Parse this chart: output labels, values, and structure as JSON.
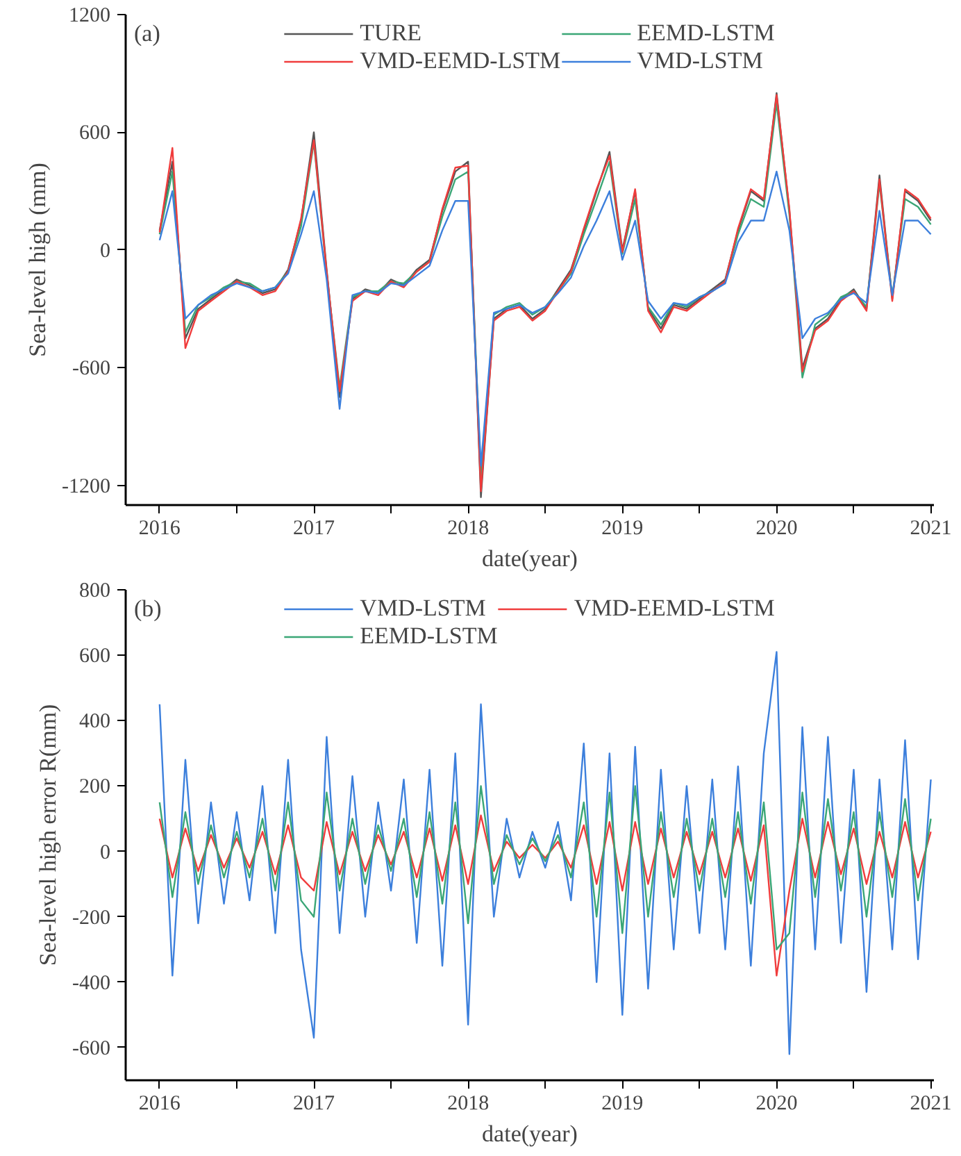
{
  "chart_data": [
    {
      "type": "line",
      "title": "(a)",
      "xlabel": "date(year)",
      "ylabel": "Sea-level high (mm)",
      "legend": "top",
      "grid": false,
      "x": [
        2016.0,
        2016.083,
        2016.167,
        2016.25,
        2016.333,
        2016.417,
        2016.5,
        2016.583,
        2016.667,
        2016.75,
        2016.833,
        2016.917,
        2017.0,
        2017.083,
        2017.167,
        2017.25,
        2017.333,
        2017.417,
        2017.5,
        2017.583,
        2017.667,
        2017.75,
        2017.833,
        2017.917,
        2018.0,
        2018.083,
        2018.167,
        2018.25,
        2018.333,
        2018.417,
        2018.5,
        2018.583,
        2018.667,
        2018.75,
        2018.833,
        2018.917,
        2019.0,
        2019.083,
        2019.167,
        2019.25,
        2019.333,
        2019.417,
        2019.5,
        2019.583,
        2019.667,
        2019.75,
        2019.833,
        2019.917,
        2020.0,
        2020.083,
        2020.167,
        2020.25,
        2020.333,
        2020.417,
        2020.5,
        2020.583,
        2020.667,
        2020.75,
        2020.833,
        2020.917,
        2021.0
      ],
      "xlim": [
        2015.78,
        2021.02
      ],
      "xticks": [
        2016,
        {
          "value": 2016.5,
          "label": null
        },
        2017,
        {
          "value": 2017.5,
          "label": null
        },
        2018,
        {
          "value": 2018.5,
          "label": null
        },
        2019,
        {
          "value": 2019.5,
          "label": null
        },
        2020,
        {
          "value": 2020.5,
          "label": null
        },
        2021
      ],
      "ylim": [
        -1300,
        1200
      ],
      "yticks": [
        -1200,
        -600,
        0,
        600,
        1200
      ],
      "series": [
        {
          "name": "TURE",
          "color": "#555555",
          "values": [
            100,
            450,
            -450,
            -300,
            -250,
            -200,
            -150,
            -180,
            -220,
            -200,
            -100,
            150,
            600,
            -100,
            -750,
            -250,
            -200,
            -220,
            -150,
            -180,
            -100,
            -50,
            200,
            400,
            450,
            -1260,
            -350,
            -300,
            -280,
            -350,
            -300,
            -200,
            -100,
            100,
            300,
            500,
            0,
            300,
            -300,
            -400,
            -280,
            -300,
            -250,
            -200,
            -150,
            100,
            300,
            250,
            800,
            200,
            -600,
            -400,
            -350,
            -250,
            -200,
            -300,
            380,
            -250,
            300,
            250,
            150
          ]
        },
        {
          "name": "EEMD-LSTM",
          "color": "#3aa676",
          "values": [
            80,
            400,
            -420,
            -280,
            -240,
            -190,
            -160,
            -170,
            -210,
            -190,
            -110,
            120,
            550,
            -120,
            -700,
            -240,
            -210,
            -210,
            -160,
            -170,
            -110,
            -60,
            170,
            360,
            400,
            -1150,
            -330,
            -290,
            -270,
            -330,
            -290,
            -210,
            -120,
            80,
            260,
            450,
            -20,
            260,
            -290,
            -380,
            -270,
            -290,
            -240,
            -210,
            -160,
            80,
            260,
            220,
            750,
            180,
            -650,
            -380,
            -330,
            -240,
            -210,
            -290,
            340,
            -240,
            260,
            220,
            130
          ]
        },
        {
          "name": "VMD-EEMD-LSTM",
          "color": "#f03c3c",
          "values": [
            90,
            520,
            -500,
            -310,
            -260,
            -210,
            -160,
            -190,
            -230,
            -210,
            -110,
            160,
            560,
            -110,
            -720,
            -260,
            -210,
            -230,
            -160,
            -190,
            -110,
            -60,
            210,
            420,
            430,
            -1230,
            -360,
            -310,
            -290,
            -360,
            -310,
            -210,
            -110,
            110,
            310,
            480,
            -10,
            310,
            -310,
            -420,
            -290,
            -310,
            -260,
            -210,
            -160,
            110,
            310,
            260,
            790,
            210,
            -620,
            -410,
            -360,
            -260,
            -210,
            -310,
            360,
            -260,
            310,
            260,
            160
          ]
        },
        {
          "name": "VMD-LSTM",
          "color": "#3c7fdc",
          "values": [
            50,
            300,
            -350,
            -280,
            -230,
            -200,
            -170,
            -190,
            -210,
            -190,
            -120,
            80,
            300,
            -150,
            -810,
            -230,
            -210,
            -220,
            -170,
            -180,
            -130,
            -80,
            100,
            250,
            250,
            -1100,
            -320,
            -300,
            -280,
            -320,
            -290,
            -220,
            -140,
            20,
            150,
            300,
            -50,
            150,
            -260,
            -350,
            -270,
            -280,
            -240,
            -210,
            -170,
            40,
            150,
            150,
            400,
            100,
            -450,
            -350,
            -320,
            -250,
            -220,
            -270,
            200,
            -230,
            150,
            150,
            80
          ]
        }
      ]
    },
    {
      "type": "line",
      "title": "(b)",
      "xlabel": "date(year)",
      "ylabel": "Sea-level high error R(mm)",
      "legend": "top",
      "grid": false,
      "x": [
        2016.0,
        2016.083,
        2016.167,
        2016.25,
        2016.333,
        2016.417,
        2016.5,
        2016.583,
        2016.667,
        2016.75,
        2016.833,
        2016.917,
        2017.0,
        2017.083,
        2017.167,
        2017.25,
        2017.333,
        2017.417,
        2017.5,
        2017.583,
        2017.667,
        2017.75,
        2017.833,
        2017.917,
        2018.0,
        2018.083,
        2018.167,
        2018.25,
        2018.333,
        2018.417,
        2018.5,
        2018.583,
        2018.667,
        2018.75,
        2018.833,
        2018.917,
        2019.0,
        2019.083,
        2019.167,
        2019.25,
        2019.333,
        2019.417,
        2019.5,
        2019.583,
        2019.667,
        2019.75,
        2019.833,
        2019.917,
        2020.0,
        2020.083,
        2020.167,
        2020.25,
        2020.333,
        2020.417,
        2020.5,
        2020.583,
        2020.667,
        2020.75,
        2020.833,
        2020.917,
        2021.0
      ],
      "xlim": [
        2015.78,
        2021.02
      ],
      "xticks": [
        2016,
        {
          "value": 2016.5,
          "label": null
        },
        2017,
        {
          "value": 2017.5,
          "label": null
        },
        2018,
        {
          "value": 2018.5,
          "label": null
        },
        2019,
        {
          "value": 2019.5,
          "label": null
        },
        2020,
        {
          "value": 2020.5,
          "label": null
        },
        2021
      ],
      "ylim": [
        -700,
        800
      ],
      "yticks": [
        -600,
        -400,
        -200,
        0,
        200,
        400,
        600,
        800
      ],
      "series": [
        {
          "name": "VMD-LSTM",
          "color": "#3c7fdc",
          "values": [
            450,
            -380,
            280,
            -220,
            150,
            -160,
            120,
            -150,
            200,
            -250,
            280,
            -300,
            -570,
            350,
            -250,
            230,
            -200,
            150,
            -120,
            220,
            -280,
            250,
            -350,
            300,
            -530,
            450,
            -200,
            100,
            -80,
            60,
            -50,
            90,
            -150,
            330,
            -400,
            300,
            -500,
            320,
            -420,
            250,
            -300,
            200,
            -250,
            220,
            -300,
            260,
            -350,
            300,
            610,
            -620,
            380,
            -300,
            350,
            -280,
            250,
            -430,
            220,
            -300,
            340,
            -330,
            220
          ]
        },
        {
          "name": "VMD-EEMD-LSTM",
          "color": "#f03c3c",
          "values": [
            100,
            -80,
            70,
            -60,
            50,
            -50,
            40,
            -50,
            60,
            -70,
            80,
            -80,
            -120,
            90,
            -70,
            60,
            -60,
            50,
            -40,
            60,
            -80,
            70,
            -90,
            80,
            -100,
            110,
            -60,
            30,
            -20,
            20,
            -20,
            30,
            -50,
            80,
            -100,
            90,
            -120,
            90,
            -100,
            70,
            -80,
            60,
            -70,
            60,
            -80,
            70,
            -90,
            80,
            -380,
            -120,
            100,
            -80,
            90,
            -70,
            70,
            -100,
            60,
            -80,
            90,
            -80,
            60
          ]
        },
        {
          "name": "EEMD-LSTM",
          "color": "#3aa676",
          "values": [
            150,
            -140,
            120,
            -100,
            80,
            -80,
            60,
            -80,
            100,
            -120,
            150,
            -150,
            -200,
            180,
            -120,
            100,
            -100,
            80,
            -60,
            100,
            -140,
            120,
            -160,
            150,
            -220,
            200,
            -100,
            50,
            -40,
            40,
            -30,
            50,
            -80,
            150,
            -200,
            180,
            -250,
            200,
            -200,
            120,
            -140,
            100,
            -120,
            100,
            -140,
            120,
            -160,
            150,
            -300,
            -250,
            180,
            -140,
            160,
            -120,
            120,
            -200,
            120,
            -140,
            160,
            -150,
            100
          ]
        }
      ]
    }
  ]
}
